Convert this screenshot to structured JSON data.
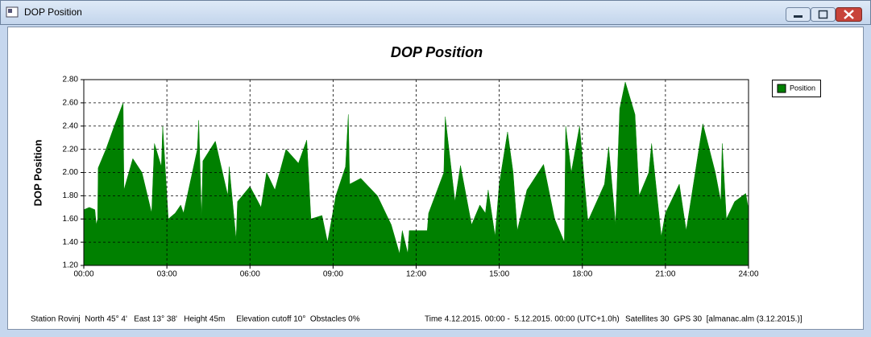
{
  "window": {
    "title": "DOP Position"
  },
  "chart_data": {
    "type": "area",
    "title": "DOP Position",
    "y_label": "DOP Position",
    "x": [
      0,
      0.2,
      0.4,
      0.45,
      0.5,
      0.52,
      0.8,
      1.1,
      1.42,
      1.45,
      1.77,
      2.1,
      2.45,
      2.55,
      2.8,
      2.85,
      3.05,
      3.3,
      3.5,
      3.6,
      4.1,
      4.15,
      4.25,
      4.3,
      4.75,
      5.2,
      5.25,
      5.5,
      5.55,
      6.0,
      6.4,
      6.6,
      6.9,
      7.3,
      7.75,
      8.05,
      8.2,
      8.6,
      8.8,
      9.1,
      9.45,
      9.55,
      9.6,
      10.0,
      10.6,
      11.1,
      11.4,
      11.5,
      11.7,
      11.75,
      12.4,
      12.45,
      13.0,
      13.05,
      13.4,
      13.6,
      14.0,
      14.3,
      14.5,
      14.6,
      14.85,
      15.0,
      15.3,
      15.5,
      15.65,
      16.0,
      16.6,
      17.0,
      17.35,
      17.4,
      17.6,
      17.9,
      18.2,
      18.8,
      18.95,
      19.2,
      19.35,
      19.55,
      19.9,
      20.05,
      20.4,
      20.5,
      20.85,
      21.0,
      21.5,
      21.75,
      22.35,
      22.8,
      23.0,
      23.05,
      23.2,
      23.5,
      23.9,
      24
    ],
    "series": [
      {
        "name": "Position",
        "color": "#008000",
        "values": [
          1.68,
          1.7,
          1.68,
          1.55,
          1.6,
          2.04,
          2.2,
          2.4,
          2.6,
          1.85,
          2.12,
          2.0,
          1.65,
          2.25,
          2.05,
          2.4,
          1.6,
          1.65,
          1.72,
          1.65,
          2.2,
          2.45,
          1.6,
          2.1,
          2.27,
          1.8,
          2.05,
          1.42,
          1.75,
          1.88,
          1.7,
          2.0,
          1.85,
          2.2,
          2.08,
          2.28,
          1.6,
          1.63,
          1.4,
          1.8,
          2.05,
          2.5,
          1.9,
          1.95,
          1.8,
          1.55,
          1.3,
          1.5,
          1.3,
          1.5,
          1.5,
          1.65,
          2.0,
          2.48,
          1.75,
          2.06,
          1.55,
          1.72,
          1.65,
          1.85,
          1.45,
          1.9,
          2.35,
          2.0,
          1.5,
          1.85,
          2.07,
          1.6,
          1.4,
          2.4,
          2.0,
          2.4,
          1.58,
          1.9,
          2.22,
          1.55,
          2.55,
          2.78,
          2.5,
          1.8,
          2.0,
          2.25,
          1.45,
          1.65,
          1.9,
          1.5,
          2.42,
          2.0,
          1.75,
          2.25,
          1.6,
          1.75,
          1.82,
          1.68
        ]
      }
    ],
    "xlim": [
      0,
      24
    ],
    "xticks": [
      {
        "value": 0,
        "label": "00:00"
      },
      {
        "value": 3,
        "label": "03:00"
      },
      {
        "value": 6,
        "label": "06:00"
      },
      {
        "value": 9,
        "label": "09:00"
      },
      {
        "value": 12,
        "label": "12:00"
      },
      {
        "value": 15,
        "label": "15:00"
      },
      {
        "value": 18,
        "label": "18:00"
      },
      {
        "value": 21,
        "label": "21:00"
      },
      {
        "value": 24,
        "label": "24:00"
      }
    ],
    "ylim": [
      1.2,
      2.8
    ],
    "yticks": [
      {
        "value": 1.2,
        "label": "1.20"
      },
      {
        "value": 1.4,
        "label": "1.40"
      },
      {
        "value": 1.6,
        "label": "1.60"
      },
      {
        "value": 1.8,
        "label": "1.80"
      },
      {
        "value": 2.0,
        "label": "2.00"
      },
      {
        "value": 2.2,
        "label": "2.20"
      },
      {
        "value": 2.4,
        "label": "2.40"
      },
      {
        "value": 2.6,
        "label": "2.60"
      },
      {
        "value": 2.8,
        "label": "2.80"
      }
    ],
    "grid": true,
    "legend": "top-right"
  },
  "status_bar": {
    "station": "Station Rovinj  North 45° 4'   East 13° 38'   Height 45m     Elevation cutoff 10°  Obstacles 0%",
    "time": "Time 4.12.2015. 00:00 -  5.12.2015. 00:00 (UTC+1.0h)",
    "satellites": "Satellites 30  GPS 30  [almanac.alm (3.12.2015.)]"
  }
}
